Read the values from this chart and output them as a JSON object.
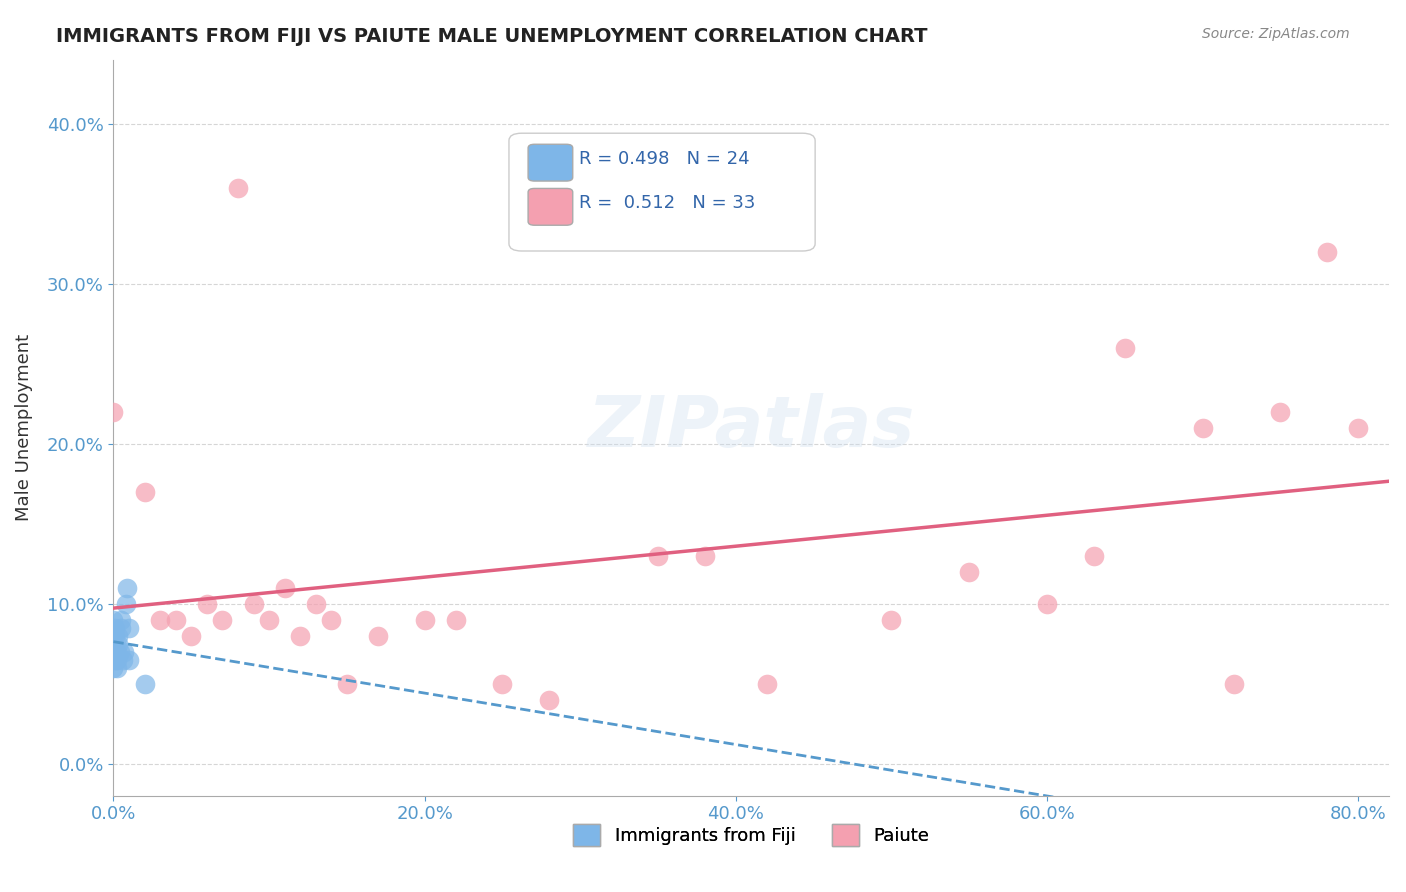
{
  "title": "IMMIGRANTS FROM FIJI VS PAIUTE MALE UNEMPLOYMENT CORRELATION CHART",
  "source": "Source: ZipAtlas.com",
  "xlabel": "",
  "ylabel": "Male Unemployment",
  "xlim": [
    0.0,
    0.82
  ],
  "ylim": [
    -0.02,
    0.44
  ],
  "xticks": [
    0.0,
    0.2,
    0.4,
    0.6,
    0.8
  ],
  "yticks": [
    0.0,
    0.1,
    0.2,
    0.3,
    0.4
  ],
  "fiji_R": 0.498,
  "fiji_N": 24,
  "paiute_R": 0.512,
  "paiute_N": 33,
  "fiji_color": "#7EB6E8",
  "paiute_color": "#F4A0B0",
  "fiji_line_color": "#5599CC",
  "paiute_line_color": "#E06080",
  "watermark": "ZIPatlas",
  "fiji_points": [
    [
      0.0,
      0.06
    ],
    [
      0.0,
      0.07
    ],
    [
      0.0,
      0.08
    ],
    [
      0.0,
      0.09
    ],
    [
      0.0,
      0.075
    ],
    [
      0.001,
      0.065
    ],
    [
      0.001,
      0.07
    ],
    [
      0.001,
      0.08
    ],
    [
      0.001,
      0.085
    ],
    [
      0.002,
      0.06
    ],
    [
      0.002,
      0.07
    ],
    [
      0.002,
      0.065
    ],
    [
      0.003,
      0.075
    ],
    [
      0.003,
      0.08
    ],
    [
      0.004,
      0.07
    ],
    [
      0.005,
      0.09
    ],
    [
      0.005,
      0.085
    ],
    [
      0.006,
      0.065
    ],
    [
      0.007,
      0.07
    ],
    [
      0.008,
      0.1
    ],
    [
      0.009,
      0.11
    ],
    [
      0.01,
      0.085
    ],
    [
      0.01,
      0.065
    ],
    [
      0.02,
      0.05
    ]
  ],
  "paiute_points": [
    [
      0.0,
      0.22
    ],
    [
      0.02,
      0.17
    ],
    [
      0.03,
      0.09
    ],
    [
      0.04,
      0.09
    ],
    [
      0.05,
      0.08
    ],
    [
      0.06,
      0.1
    ],
    [
      0.07,
      0.09
    ],
    [
      0.08,
      0.36
    ],
    [
      0.09,
      0.1
    ],
    [
      0.1,
      0.09
    ],
    [
      0.11,
      0.11
    ],
    [
      0.12,
      0.08
    ],
    [
      0.13,
      0.1
    ],
    [
      0.14,
      0.09
    ],
    [
      0.15,
      0.05
    ],
    [
      0.17,
      0.08
    ],
    [
      0.2,
      0.09
    ],
    [
      0.22,
      0.09
    ],
    [
      0.25,
      0.05
    ],
    [
      0.28,
      0.04
    ],
    [
      0.35,
      0.13
    ],
    [
      0.38,
      0.13
    ],
    [
      0.42,
      0.05
    ],
    [
      0.5,
      0.09
    ],
    [
      0.55,
      0.12
    ],
    [
      0.6,
      0.1
    ],
    [
      0.63,
      0.13
    ],
    [
      0.65,
      0.26
    ],
    [
      0.7,
      0.21
    ],
    [
      0.72,
      0.05
    ],
    [
      0.75,
      0.22
    ],
    [
      0.78,
      0.32
    ],
    [
      0.8,
      0.21
    ]
  ]
}
